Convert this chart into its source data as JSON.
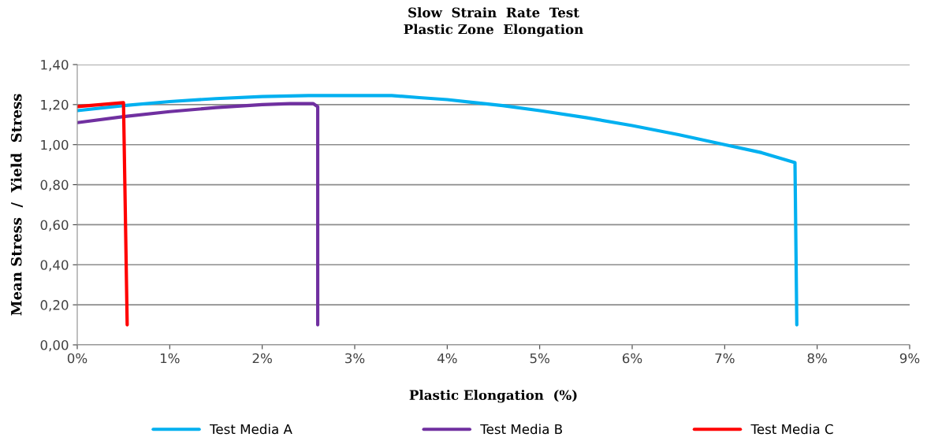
{
  "chart_data": {
    "type": "line",
    "title": "Slow  Strain  Rate  Test\nPlastic Zone  Elongation",
    "xlabel": "Plastic Elongation  (%)",
    "ylabel": "Mean Stress  /  Yield  Stress",
    "xlim": [
      0,
      9
    ],
    "xticks": [
      {
        "value": 0,
        "label": "0%"
      },
      {
        "value": 1,
        "label": "1%"
      },
      {
        "value": 2,
        "label": "2%"
      },
      {
        "value": 3,
        "label": "3%"
      },
      {
        "value": 4,
        "label": "4%"
      },
      {
        "value": 5,
        "label": "5%"
      },
      {
        "value": 6,
        "label": "6%"
      },
      {
        "value": 7,
        "label": "7%"
      },
      {
        "value": 8,
        "label": "8%"
      },
      {
        "value": 9,
        "label": "9%"
      }
    ],
    "ylim": [
      0,
      1.4
    ],
    "yticks": [
      {
        "value": 0,
        "label": "0,00"
      },
      {
        "value": 0.2,
        "label": "0,20"
      },
      {
        "value": 0.4,
        "label": "0,40"
      },
      {
        "value": 0.6,
        "label": "0,60"
      },
      {
        "value": 0.8,
        "label": "0,80"
      },
      {
        "value": 1.0,
        "label": "1,00"
      },
      {
        "value": 1.2,
        "label": "1,20"
      },
      {
        "value": 1.4,
        "label": "1,40"
      }
    ],
    "grid": "y",
    "legend": "bottom",
    "marker": "none",
    "line_style": "solid",
    "series": [
      {
        "name": "Test Media A",
        "color": "#00b0f0",
        "x": [
          0,
          0.5,
          1,
          1.5,
          2,
          2.5,
          3,
          3.4,
          3.7,
          4,
          4.3,
          4.6,
          5,
          5.5,
          6,
          6.5,
          7,
          7.4,
          7.76,
          7.78
        ],
        "values": [
          1.17,
          1.195,
          1.215,
          1.23,
          1.24,
          1.245,
          1.245,
          1.245,
          1.235,
          1.225,
          1.21,
          1.195,
          1.17,
          1.135,
          1.095,
          1.05,
          1.0,
          0.96,
          0.91,
          0.1
        ]
      },
      {
        "name": "Test Media B",
        "color": "#7030a0",
        "x": [
          0,
          0.5,
          1,
          1.5,
          2,
          2.3,
          2.55,
          2.6,
          2.6
        ],
        "values": [
          1.11,
          1.14,
          1.165,
          1.185,
          1.2,
          1.205,
          1.205,
          1.19,
          0.1
        ]
      },
      {
        "name": "Test Media C",
        "color": "#ff0000",
        "x": [
          0,
          0.25,
          0.5,
          0.54
        ],
        "values": [
          1.19,
          1.2,
          1.21,
          0.1
        ]
      }
    ]
  }
}
